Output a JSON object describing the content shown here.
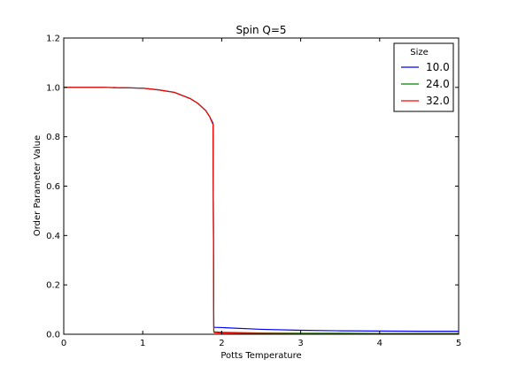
{
  "chart_data": {
    "type": "line",
    "title": "Spin Q=5",
    "xlabel": "Potts Temperature",
    "ylabel": "Order Parameter Value",
    "xlim": [
      0,
      5
    ],
    "ylim": [
      0,
      1.2
    ],
    "xticks": [
      "0",
      "1",
      "2",
      "3",
      "4",
      "5"
    ],
    "yticks": [
      "0.0",
      "0.2",
      "0.4",
      "0.6",
      "0.8",
      "1.0",
      "1.2"
    ],
    "grid": false,
    "legend": {
      "title": "Size",
      "placement": "top-right"
    },
    "series": [
      {
        "name": "10.0",
        "color": "#0000ff",
        "x": [
          0,
          0.5,
          1.0,
          1.2,
          1.4,
          1.6,
          1.7,
          1.8,
          1.85,
          1.89,
          1.9,
          1.91,
          2.0,
          2.5,
          3.0,
          3.5,
          4.0,
          4.5,
          5.0
        ],
        "y": [
          1.0,
          1.0,
          0.997,
          0.99,
          0.98,
          0.955,
          0.935,
          0.905,
          0.88,
          0.855,
          0.03,
          0.028,
          0.027,
          0.02,
          0.016,
          0.014,
          0.013,
          0.012,
          0.012
        ]
      },
      {
        "name": "24.0",
        "color": "#008000",
        "x": [
          0,
          0.5,
          1.0,
          1.2,
          1.4,
          1.6,
          1.7,
          1.8,
          1.85,
          1.89,
          1.9,
          1.91,
          2.0,
          2.5,
          3.0,
          3.5,
          4.0,
          4.5,
          5.0
        ],
        "y": [
          1.0,
          1.0,
          0.997,
          0.99,
          0.98,
          0.955,
          0.935,
          0.905,
          0.88,
          0.85,
          0.012,
          0.01,
          0.008,
          0.005,
          0.004,
          0.004,
          0.003,
          0.003,
          0.003
        ]
      },
      {
        "name": "32.0",
        "color": "#ff0000",
        "x": [
          0,
          0.5,
          1.0,
          1.2,
          1.4,
          1.6,
          1.7,
          1.8,
          1.85,
          1.89,
          1.9,
          1.91,
          2.0,
          2.5,
          3.0,
          3.5,
          4.0,
          4.5,
          5.0
        ],
        "y": [
          1.0,
          1.0,
          0.997,
          0.99,
          0.98,
          0.955,
          0.935,
          0.905,
          0.88,
          0.85,
          0.008,
          0.006,
          0.005,
          0.003,
          0.002,
          0.002,
          0.002,
          0.002,
          0.002
        ]
      }
    ]
  }
}
